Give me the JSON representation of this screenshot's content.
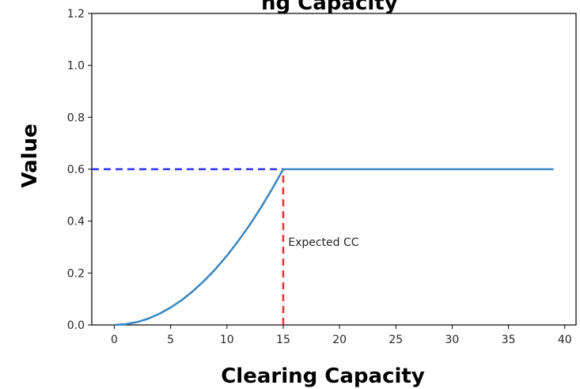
{
  "chart_data": {
    "type": "line",
    "title": "ng Capacity",
    "xlabel": "Clearing Capacity",
    "ylabel": "Value",
    "xlim": [
      -2,
      41
    ],
    "ylim": [
      0,
      1.2
    ],
    "xticks": [
      0,
      5,
      10,
      15,
      20,
      25,
      30,
      35,
      40
    ],
    "yticks": [
      0.0,
      0.2,
      0.4,
      0.6,
      0.8,
      1.0,
      1.2
    ],
    "xtick_labels": [
      "0",
      "5",
      "10",
      "15",
      "20",
      "25",
      "30",
      "35",
      "40"
    ],
    "ytick_labels": [
      "0.0",
      "0.2",
      "0.4",
      "0.6",
      "0.8",
      "1.0",
      "1.2"
    ],
    "grid": false,
    "series": [
      {
        "color": "#3a86c2",
        "x": [
          0,
          1,
          2,
          3,
          4,
          5,
          6,
          7,
          8,
          9,
          10,
          11,
          12,
          13,
          14,
          15,
          16,
          17,
          18,
          19,
          20,
          21,
          22,
          23,
          24,
          25,
          26,
          27,
          28,
          29,
          30,
          31,
          32,
          33,
          34,
          35,
          36,
          37,
          38,
          39
        ],
        "values": [
          0.0,
          0.003,
          0.011,
          0.024,
          0.043,
          0.067,
          0.096,
          0.131,
          0.171,
          0.216,
          0.267,
          0.323,
          0.384,
          0.451,
          0.523,
          0.6,
          0.6,
          0.6,
          0.6,
          0.6,
          0.6,
          0.6,
          0.6,
          0.6,
          0.6,
          0.6,
          0.6,
          0.6,
          0.6,
          0.6,
          0.6,
          0.6,
          0.6,
          0.6,
          0.6,
          0.6,
          0.6,
          0.6,
          0.6,
          0.6
        ]
      }
    ],
    "reference_lines": [
      {
        "orientation": "horizontal",
        "y": 0.6,
        "x_from": -2,
        "x_to": 15,
        "color": "#2b2bff",
        "style": "dashed"
      },
      {
        "orientation": "vertical",
        "x": 15,
        "y_from": 0,
        "y_to": 0.6,
        "color": "#ff2d2d",
        "style": "dashed"
      }
    ],
    "annotations": [
      {
        "text": "Expected CC",
        "x": 15.3,
        "y": 0.32
      }
    ]
  }
}
